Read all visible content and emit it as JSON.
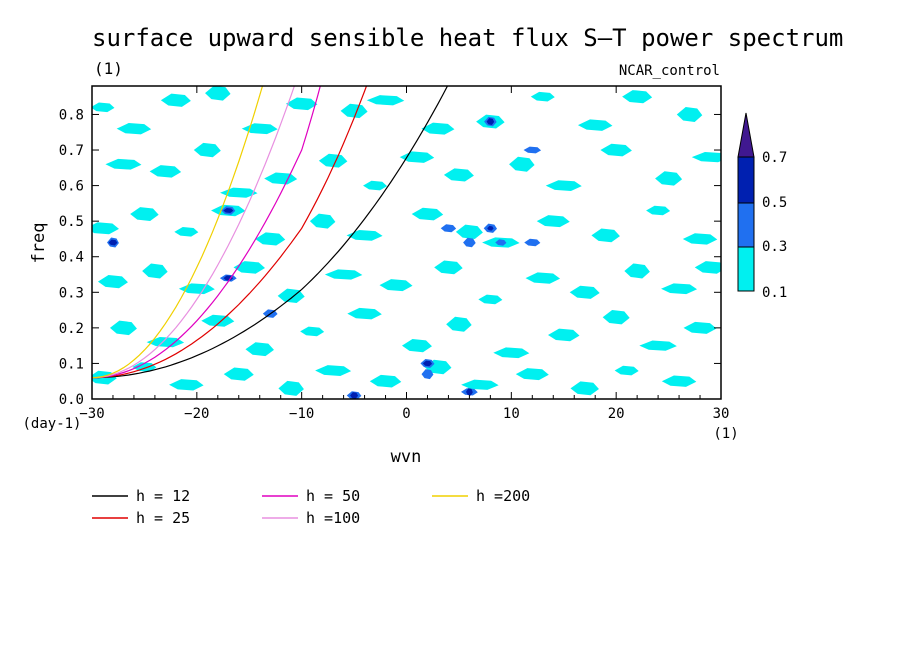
{
  "chart_data": {
    "type": "heatmap",
    "title": "surface upward sensible heat flux S–T power spectrum",
    "subtitle": "NCAR_control",
    "units_label": "(1)",
    "xlabel": "wvn",
    "ylabel": "freq",
    "x_units": "(1)",
    "y_units": "(day-1)",
    "xlim": [
      -30,
      30
    ],
    "ylim": [
      0,
      0.88
    ],
    "xticks": [
      "−30",
      "−20",
      "−10",
      "0",
      "10",
      "20",
      "30"
    ],
    "xtick_values": [
      -30,
      -20,
      -10,
      0,
      10,
      20,
      30
    ],
    "yticks": [
      "0.0",
      "0.1",
      "0.2",
      "0.3",
      "0.4",
      "0.5",
      "0.6",
      "0.7",
      "0.8"
    ],
    "ytick_values": [
      0,
      0.1,
      0.2,
      0.3,
      0.4,
      0.5,
      0.6,
      0.7,
      0.8
    ],
    "contour_levels": [
      0.1,
      0.3,
      0.5,
      0.7
    ],
    "colorbar_labels": [
      "0.1",
      "0.3",
      "0.5",
      "0.7"
    ],
    "colors": {
      "level_0_1": "#00f0f0",
      "level_0_3": "#2070f0",
      "level_0_5": "#0020b0",
      "level_0_7": "#401890",
      "h12": "#000000",
      "h25": "#e00000",
      "h50": "#e000c0",
      "h100": "#e890e0",
      "h200": "#f0d000"
    },
    "dispersion_curves": [
      {
        "name": "h = 12",
        "equivalent_depth": 12,
        "color": "#000000"
      },
      {
        "name": "h = 25",
        "equivalent_depth": 25,
        "color": "#e00000"
      },
      {
        "name": "h = 50",
        "equivalent_depth": 50,
        "color": "#e000c0"
      },
      {
        "name": "h =100",
        "equivalent_depth": 100,
        "color": "#e890e0"
      },
      {
        "name": "h =200",
        "equivalent_depth": 200,
        "color": "#f0d000"
      }
    ],
    "spectrum_patches": [
      {
        "x": -29,
        "y": 0.82,
        "level": 0.1
      },
      {
        "x": -26,
        "y": 0.76,
        "level": 0.1
      },
      {
        "x": -22,
        "y": 0.84,
        "level": 0.1
      },
      {
        "x": -18,
        "y": 0.86,
        "level": 0.1
      },
      {
        "x": -14,
        "y": 0.76,
        "level": 0.1
      },
      {
        "x": -10,
        "y": 0.83,
        "level": 0.1
      },
      {
        "x": -5,
        "y": 0.81,
        "level": 0.1
      },
      {
        "x": -2,
        "y": 0.84,
        "level": 0.1
      },
      {
        "x": 3,
        "y": 0.76,
        "level": 0.1
      },
      {
        "x": 8,
        "y": 0.78,
        "level": 0.1
      },
      {
        "x": 13,
        "y": 0.85,
        "level": 0.1
      },
      {
        "x": 18,
        "y": 0.77,
        "level": 0.1
      },
      {
        "x": 22,
        "y": 0.85,
        "level": 0.1
      },
      {
        "x": 27,
        "y": 0.8,
        "level": 0.1
      },
      {
        "x": -27,
        "y": 0.66,
        "level": 0.1
      },
      {
        "x": -23,
        "y": 0.64,
        "level": 0.1
      },
      {
        "x": -19,
        "y": 0.7,
        "level": 0.1
      },
      {
        "x": -16,
        "y": 0.58,
        "level": 0.1
      },
      {
        "x": -12,
        "y": 0.62,
        "level": 0.1
      },
      {
        "x": -7,
        "y": 0.67,
        "level": 0.1
      },
      {
        "x": -3,
        "y": 0.6,
        "level": 0.1
      },
      {
        "x": 1,
        "y": 0.68,
        "level": 0.1
      },
      {
        "x": 5,
        "y": 0.63,
        "level": 0.1
      },
      {
        "x": 11,
        "y": 0.66,
        "level": 0.1
      },
      {
        "x": 15,
        "y": 0.6,
        "level": 0.1
      },
      {
        "x": 20,
        "y": 0.7,
        "level": 0.1
      },
      {
        "x": 25,
        "y": 0.62,
        "level": 0.1
      },
      {
        "x": 29,
        "y": 0.68,
        "level": 0.1
      },
      {
        "x": -29,
        "y": 0.48,
        "level": 0.1
      },
      {
        "x": -25,
        "y": 0.52,
        "level": 0.1
      },
      {
        "x": -21,
        "y": 0.47,
        "level": 0.1
      },
      {
        "x": -17,
        "y": 0.53,
        "level": 0.1
      },
      {
        "x": -13,
        "y": 0.45,
        "level": 0.1
      },
      {
        "x": -8,
        "y": 0.5,
        "level": 0.1
      },
      {
        "x": -4,
        "y": 0.46,
        "level": 0.1
      },
      {
        "x": 2,
        "y": 0.52,
        "level": 0.1
      },
      {
        "x": 6,
        "y": 0.47,
        "level": 0.1
      },
      {
        "x": 9,
        "y": 0.44,
        "level": 0.1
      },
      {
        "x": 14,
        "y": 0.5,
        "level": 0.1
      },
      {
        "x": 19,
        "y": 0.46,
        "level": 0.1
      },
      {
        "x": 24,
        "y": 0.53,
        "level": 0.1
      },
      {
        "x": 28,
        "y": 0.45,
        "level": 0.1
      },
      {
        "x": -28,
        "y": 0.33,
        "level": 0.1
      },
      {
        "x": -24,
        "y": 0.36,
        "level": 0.1
      },
      {
        "x": -20,
        "y": 0.31,
        "level": 0.1
      },
      {
        "x": -15,
        "y": 0.37,
        "level": 0.1
      },
      {
        "x": -11,
        "y": 0.29,
        "level": 0.1
      },
      {
        "x": -6,
        "y": 0.35,
        "level": 0.1
      },
      {
        "x": -1,
        "y": 0.32,
        "level": 0.1
      },
      {
        "x": 4,
        "y": 0.37,
        "level": 0.1
      },
      {
        "x": 8,
        "y": 0.28,
        "level": 0.1
      },
      {
        "x": 13,
        "y": 0.34,
        "level": 0.1
      },
      {
        "x": 17,
        "y": 0.3,
        "level": 0.1
      },
      {
        "x": 22,
        "y": 0.36,
        "level": 0.1
      },
      {
        "x": 26,
        "y": 0.31,
        "level": 0.1
      },
      {
        "x": 29,
        "y": 0.37,
        "level": 0.1
      },
      {
        "x": -27,
        "y": 0.2,
        "level": 0.1
      },
      {
        "x": -23,
        "y": 0.16,
        "level": 0.1
      },
      {
        "x": -18,
        "y": 0.22,
        "level": 0.1
      },
      {
        "x": -14,
        "y": 0.14,
        "level": 0.1
      },
      {
        "x": -9,
        "y": 0.19,
        "level": 0.1
      },
      {
        "x": -4,
        "y": 0.24,
        "level": 0.1
      },
      {
        "x": 1,
        "y": 0.15,
        "level": 0.1
      },
      {
        "x": 5,
        "y": 0.21,
        "level": 0.1
      },
      {
        "x": 10,
        "y": 0.13,
        "level": 0.1
      },
      {
        "x": 15,
        "y": 0.18,
        "level": 0.1
      },
      {
        "x": 20,
        "y": 0.23,
        "level": 0.1
      },
      {
        "x": 24,
        "y": 0.15,
        "level": 0.1
      },
      {
        "x": 28,
        "y": 0.2,
        "level": 0.1
      },
      {
        "x": -29,
        "y": 0.06,
        "level": 0.1
      },
      {
        "x": -25,
        "y": 0.09,
        "level": 0.1
      },
      {
        "x": -21,
        "y": 0.04,
        "level": 0.1
      },
      {
        "x": -16,
        "y": 0.07,
        "level": 0.1
      },
      {
        "x": -11,
        "y": 0.03,
        "level": 0.1
      },
      {
        "x": -7,
        "y": 0.08,
        "level": 0.1
      },
      {
        "x": -2,
        "y": 0.05,
        "level": 0.1
      },
      {
        "x": 3,
        "y": 0.09,
        "level": 0.1
      },
      {
        "x": 7,
        "y": 0.04,
        "level": 0.1
      },
      {
        "x": 12,
        "y": 0.07,
        "level": 0.1
      },
      {
        "x": 17,
        "y": 0.03,
        "level": 0.1
      },
      {
        "x": 21,
        "y": 0.08,
        "level": 0.1
      },
      {
        "x": 26,
        "y": 0.05,
        "level": 0.1
      },
      {
        "x": -17,
        "y": 0.53,
        "level": 0.3
      },
      {
        "x": -28,
        "y": 0.44,
        "level": 0.3
      },
      {
        "x": -17,
        "y": 0.34,
        "level": 0.3
      },
      {
        "x": -13,
        "y": 0.24,
        "level": 0.3
      },
      {
        "x": 8,
        "y": 0.78,
        "level": 0.3
      },
      {
        "x": 12,
        "y": 0.7,
        "level": 0.3
      },
      {
        "x": 4,
        "y": 0.48,
        "level": 0.3
      },
      {
        "x": 8,
        "y": 0.48,
        "level": 0.3
      },
      {
        "x": 9,
        "y": 0.44,
        "level": 0.3
      },
      {
        "x": 12,
        "y": 0.44,
        "level": 0.3
      },
      {
        "x": 2,
        "y": 0.1,
        "level": 0.3
      },
      {
        "x": 2,
        "y": 0.07,
        "level": 0.3
      },
      {
        "x": 6,
        "y": 0.02,
        "level": 0.3
      },
      {
        "x": -5,
        "y": 0.01,
        "level": 0.3
      },
      {
        "x": 6,
        "y": 0.44,
        "level": 0.3
      },
      {
        "x": -17,
        "y": 0.53,
        "level": 0.5
      },
      {
        "x": -28,
        "y": 0.44,
        "level": 0.5
      },
      {
        "x": 8,
        "y": 0.78,
        "level": 0.5
      },
      {
        "x": 8,
        "y": 0.48,
        "level": 0.5
      },
      {
        "x": 2,
        "y": 0.1,
        "level": 0.5
      },
      {
        "x": -5,
        "y": 0.01,
        "level": 0.5
      },
      {
        "x": 6,
        "y": 0.02,
        "level": 0.5
      },
      {
        "x": -17,
        "y": 0.34,
        "level": 0.5
      }
    ]
  }
}
